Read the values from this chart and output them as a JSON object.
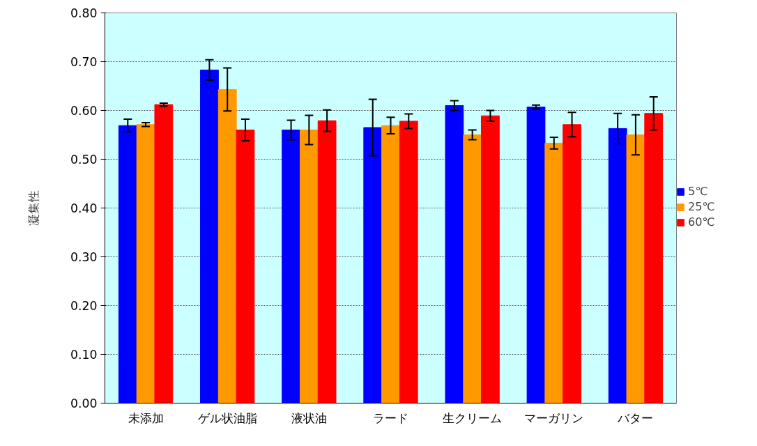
{
  "chart_data": {
    "type": "bar",
    "ylabel": "凝集性",
    "categories": [
      "未添加",
      "ゲル状油脂",
      "液状油",
      "ラード",
      "生クリーム",
      "マーガリン",
      "バター"
    ],
    "series": [
      {
        "name": "5℃",
        "color": "#0000ff",
        "values": [
          0.569,
          0.683,
          0.56,
          0.565,
          0.61,
          0.607,
          0.563
        ],
        "errors": [
          0.013,
          0.021,
          0.02,
          0.058,
          0.01,
          0.004,
          0.031
        ]
      },
      {
        "name": "25℃",
        "color": "#ff9900",
        "values": [
          0.571,
          0.643,
          0.56,
          0.569,
          0.55,
          0.533,
          0.55
        ],
        "errors": [
          0.004,
          0.044,
          0.03,
          0.017,
          0.01,
          0.012,
          0.041
        ]
      },
      {
        "name": "60℃",
        "color": "#ff0000",
        "values": [
          0.612,
          0.56,
          0.579,
          0.578,
          0.589,
          0.571,
          0.594
        ],
        "errors": [
          0.003,
          0.022,
          0.022,
          0.015,
          0.011,
          0.025,
          0.034
        ]
      }
    ],
    "ylim": [
      0,
      0.8
    ],
    "yticks": [
      {
        "value": 0,
        "label": "0.00"
      },
      {
        "value": 0.1,
        "label": "0.10"
      },
      {
        "value": 0.2,
        "label": "0.20"
      },
      {
        "value": 0.3,
        "label": "0.30"
      },
      {
        "value": 0.4,
        "label": "0.40"
      },
      {
        "value": 0.5,
        "label": "0.50"
      },
      {
        "value": 0.6,
        "label": "0.60"
      },
      {
        "value": 0.7,
        "label": "0.70"
      },
      {
        "value": 0.8,
        "label": "0.80"
      }
    ],
    "grid": "y",
    "legend": "right"
  }
}
